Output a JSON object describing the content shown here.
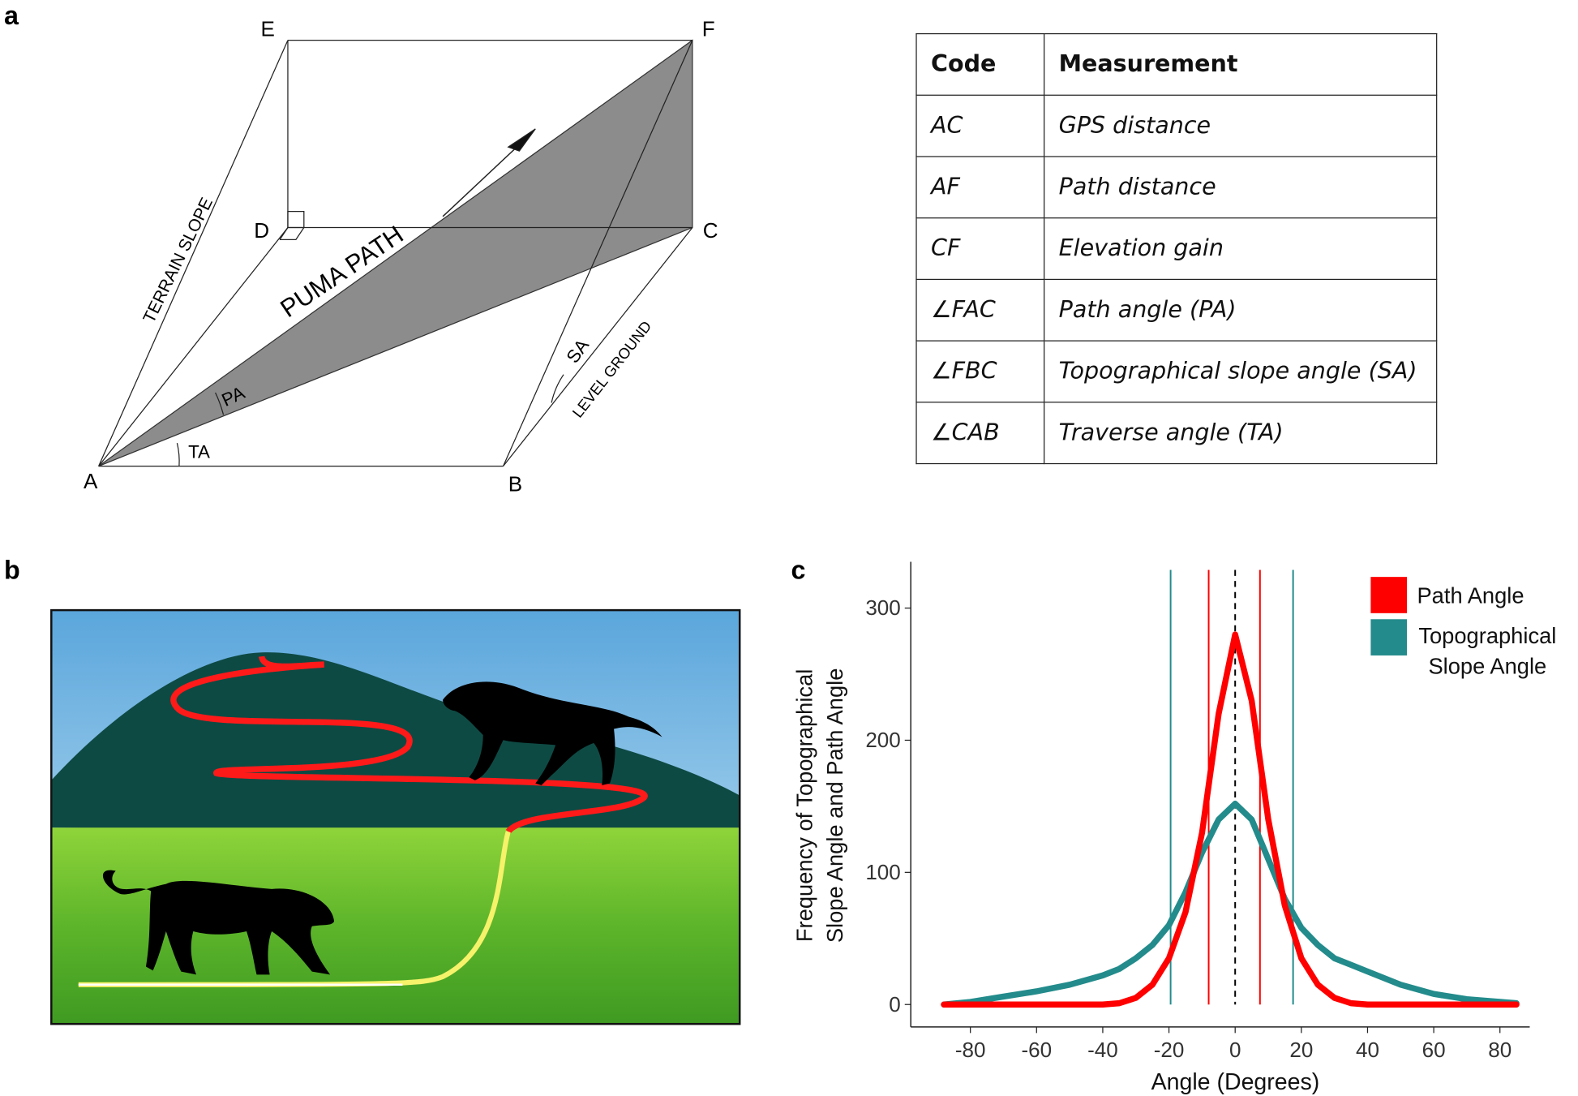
{
  "panel_labels": [
    "a",
    "b",
    "c"
  ],
  "diagram": {
    "points": [
      "A",
      "B",
      "C",
      "D",
      "E",
      "F"
    ],
    "labels": [
      "TERRAIN SLOPE",
      "PUMA PATH",
      "PA",
      "TA",
      "SA",
      "LEVEL GROUND"
    ]
  },
  "table": {
    "header": [
      "Code",
      "Measurement"
    ],
    "rows": [
      [
        "AC",
        "GPS distance"
      ],
      [
        "AF",
        "Path distance"
      ],
      [
        "CF",
        "Elevation gain"
      ],
      [
        "∠FAC",
        "Path angle (PA)"
      ],
      [
        "∠FBC",
        "Topographical slope angle (SA)"
      ],
      [
        "∠CAB",
        "Traverse angle (TA)"
      ]
    ]
  },
  "chart_data": {
    "type": "line",
    "x_label": "Angle (Degrees)",
    "y_label": "Frequency of Topographical Slope Angle and Path Angle",
    "x": [
      -88,
      -80,
      -70,
      -60,
      -50,
      -40,
      -35,
      -30,
      -25,
      -20,
      -15,
      -10,
      -5,
      0,
      5,
      10,
      15,
      20,
      25,
      30,
      35,
      40,
      50,
      60,
      70,
      80,
      85
    ],
    "series": [
      {
        "name": "Path Angle",
        "color": "#ff0000",
        "values": [
          0,
          0,
          0,
          0,
          0,
          0,
          1,
          5,
          15,
          35,
          70,
          130,
          220,
          280,
          230,
          140,
          75,
          35,
          15,
          5,
          1,
          0,
          0,
          0,
          0,
          0,
          0
        ]
      },
      {
        "name": "Topographical Slope Angle",
        "color": "#238b8b",
        "values": [
          0,
          2,
          6,
          10,
          15,
          22,
          27,
          35,
          45,
          60,
          85,
          115,
          140,
          152,
          140,
          110,
          80,
          58,
          45,
          35,
          30,
          25,
          15,
          8,
          4,
          2,
          1
        ]
      }
    ],
    "reference_lines": [
      {
        "x": -8,
        "color": "#ff0000",
        "dashed": false
      },
      {
        "x": 7.5,
        "color": "#ff0000",
        "dashed": false
      },
      {
        "x": -19.5,
        "color": "#238b8b",
        "dashed": false
      },
      {
        "x": 17.5,
        "color": "#238b8b",
        "dashed": false
      },
      {
        "x": 0,
        "color": "#000000",
        "dashed": true
      }
    ],
    "xlim": [
      -98,
      89
    ],
    "ylim": [
      -17,
      335
    ],
    "xticks": [
      -80,
      -60,
      -40,
      -20,
      0,
      20,
      40,
      60,
      80
    ],
    "yticks": [
      0,
      100,
      200,
      300
    ],
    "grid": false,
    "legend": "top-right"
  }
}
